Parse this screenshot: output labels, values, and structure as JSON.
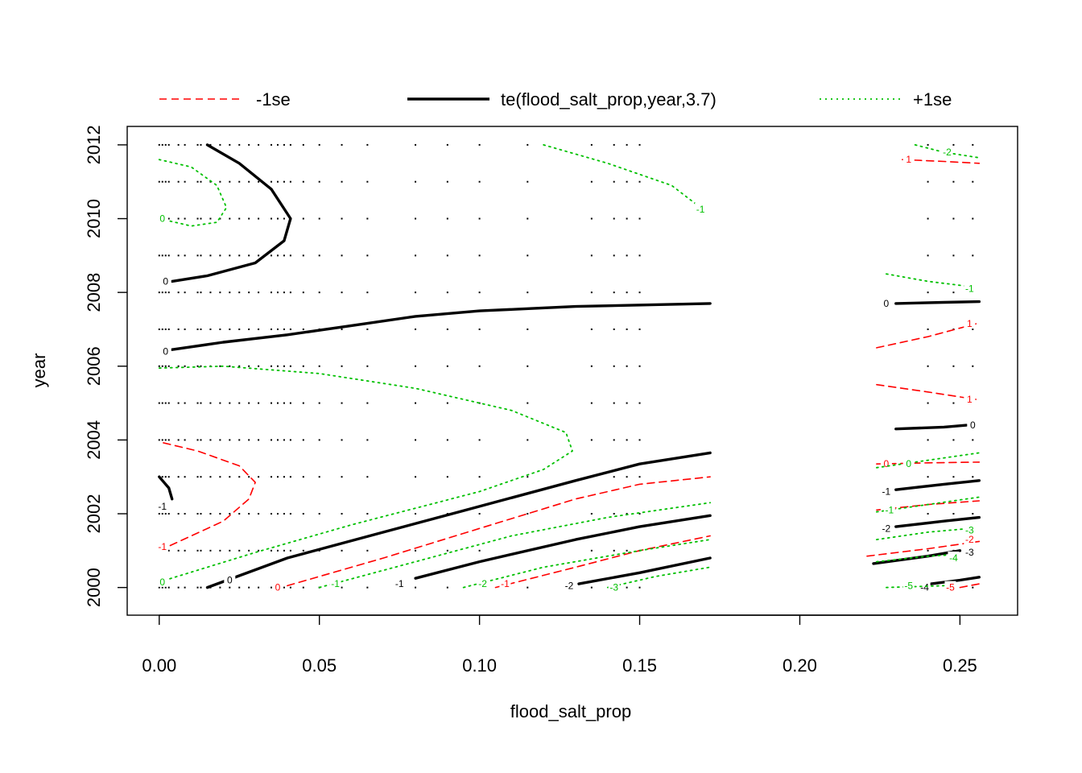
{
  "chart_data": {
    "type": "contour",
    "xlabel": "flood_salt_prop",
    "ylabel": "year",
    "xlim": [
      -0.01,
      0.268
    ],
    "ylim": [
      1999.25,
      2012.5
    ],
    "x_ticks": [
      0.0,
      0.05,
      0.1,
      0.15,
      0.2,
      0.25
    ],
    "x_tick_labels": [
      "0.00",
      "0.05",
      "0.10",
      "0.15",
      "0.20",
      "0.25"
    ],
    "y_ticks": [
      2000,
      2002,
      2004,
      2006,
      2008,
      2010,
      2012
    ],
    "y_tick_labels": [
      "2000",
      "2002",
      "2004",
      "2006",
      "2008",
      "2010",
      "2012"
    ],
    "legend": {
      "position": "top",
      "entries": [
        {
          "label": "-1se",
          "color": "#ff0000",
          "style": "dashed"
        },
        {
          "label": "te(flood_salt_prop,year,3.7)",
          "color": "#000000",
          "style": "solid"
        },
        {
          "label": "+1se",
          "color": "#00c000",
          "style": "dotted"
        }
      ]
    },
    "colors": {
      "fit": "#000000",
      "minus_se": "#ff0000",
      "plus_se": "#00c000",
      "points": "#000000"
    },
    "series": [
      {
        "name": "te(flood_salt_prop,year,3.7)",
        "contours": [
          {
            "level": "0",
            "points": [
              [
                0.004,
                2008.3
              ],
              [
                0.015,
                2008.45
              ],
              [
                0.03,
                2008.8
              ],
              [
                0.039,
                2009.4
              ],
              [
                0.041,
                2010.0
              ],
              [
                0.035,
                2010.8
              ],
              [
                0.025,
                2011.5
              ],
              [
                0.015,
                2012.0
              ]
            ],
            "label_at": [
              0.002,
              2008.3
            ]
          },
          {
            "level": "0",
            "points": [
              [
                0.004,
                2006.45
              ],
              [
                0.02,
                2006.65
              ],
              [
                0.04,
                2006.85
              ],
              [
                0.06,
                2007.1
              ],
              [
                0.08,
                2007.35
              ],
              [
                0.1,
                2007.5
              ],
              [
                0.13,
                2007.62
              ],
              [
                0.172,
                2007.7
              ]
            ],
            "label_at": [
              0.002,
              2006.4
            ]
          },
          {
            "level": "0",
            "points": [
              [
                0.015,
                2000.0
              ],
              [
                0.04,
                2000.8
              ],
              [
                0.07,
                2001.5
              ],
              [
                0.1,
                2002.2
              ],
              [
                0.13,
                2002.9
              ],
              [
                0.15,
                2003.35
              ],
              [
                0.172,
                2003.65
              ]
            ],
            "label_at": [
              0.022,
              2000.2
            ]
          },
          {
            "level": "-1",
            "points": [
              [
                0.0,
                2003.0
              ],
              [
                0.003,
                2002.7
              ],
              [
                0.004,
                2002.4
              ]
            ],
            "label_at": [
              0.001,
              2002.2
            ]
          },
          {
            "level": "-1",
            "points": [
              [
                0.08,
                2000.25
              ],
              [
                0.1,
                2000.7
              ],
              [
                0.13,
                2001.3
              ],
              [
                0.15,
                2001.65
              ],
              [
                0.172,
                2001.95
              ]
            ],
            "label_at": [
              0.075,
              2000.1
            ]
          },
          {
            "level": "-2",
            "points": [
              [
                0.131,
                2000.1
              ],
              [
                0.15,
                2000.4
              ],
              [
                0.172,
                2000.8
              ]
            ],
            "label_at": [
              0.128,
              2000.05
            ]
          },
          {
            "level": "0",
            "points": [
              [
                0.23,
                2007.7
              ],
              [
                0.245,
                2007.73
              ],
              [
                0.256,
                2007.75
              ]
            ],
            "label_at": [
              0.227,
              2007.7
            ]
          },
          {
            "level": "0",
            "points": [
              [
                0.23,
                2004.3
              ],
              [
                0.245,
                2004.35
              ],
              [
                0.252,
                2004.4
              ]
            ],
            "label_at": [
              0.254,
              2004.4
            ]
          },
          {
            "level": "-1",
            "points": [
              [
                0.23,
                2002.65
              ],
              [
                0.245,
                2002.8
              ],
              [
                0.256,
                2002.9
              ]
            ],
            "label_at": [
              0.227,
              2002.6
            ]
          },
          {
            "level": "-2",
            "points": [
              [
                0.23,
                2001.65
              ],
              [
                0.245,
                2001.8
              ],
              [
                0.256,
                2001.9
              ]
            ],
            "label_at": [
              0.227,
              2001.6
            ]
          },
          {
            "level": "-3",
            "points": [
              [
                0.223,
                2000.65
              ],
              [
                0.24,
                2000.85
              ],
              [
                0.25,
                2001.0
              ]
            ],
            "label_at": [
              0.253,
              2000.95
            ]
          },
          {
            "level": "-4",
            "points": [
              [
                0.241,
                2000.1
              ],
              [
                0.25,
                2000.2
              ],
              [
                0.256,
                2000.28
              ]
            ],
            "label_at": [
              0.239,
              2000.0
            ]
          }
        ]
      },
      {
        "name": "-1se",
        "contours": [
          {
            "level": "-1",
            "points": [
              [
                0.0,
                2001.0
              ],
              [
                0.01,
                2001.4
              ],
              [
                0.02,
                2001.8
              ],
              [
                0.028,
                2002.4
              ],
              [
                0.03,
                2002.85
              ],
              [
                0.025,
                2003.3
              ],
              [
                0.012,
                2003.7
              ],
              [
                0.0,
                2003.95
              ]
            ],
            "label_at": [
              0.001,
              2001.1
            ]
          },
          {
            "level": "0",
            "points": [
              [
                0.04,
                2000.05
              ],
              [
                0.07,
                2000.8
              ],
              [
                0.1,
                2001.6
              ],
              [
                0.13,
                2002.4
              ],
              [
                0.15,
                2002.8
              ],
              [
                0.172,
                2003.0
              ]
            ],
            "label_at": [
              0.037,
              2000.0
            ]
          },
          {
            "level": "-1",
            "points": [
              [
                0.105,
                2000.0
              ],
              [
                0.13,
                2000.55
              ],
              [
                0.15,
                2001.0
              ],
              [
                0.172,
                2001.4
              ]
            ],
            "label_at": [
              0.108,
              2000.1
            ]
          },
          {
            "level": "1",
            "points": [
              [
                0.232,
                2011.6
              ],
              [
                0.245,
                2011.55
              ],
              [
                0.256,
                2011.5
              ]
            ],
            "label_at": [
              0.234,
              2011.6
            ]
          },
          {
            "level": "1",
            "points": [
              [
                0.224,
                2006.5
              ],
              [
                0.24,
                2006.8
              ],
              [
                0.255,
                2007.15
              ]
            ],
            "label_at": [
              0.253,
              2007.15
            ]
          },
          {
            "level": "1",
            "points": [
              [
                0.224,
                2005.5
              ],
              [
                0.24,
                2005.3
              ],
              [
                0.255,
                2005.1
              ]
            ],
            "label_at": [
              0.253,
              2005.1
            ]
          },
          {
            "level": "0",
            "points": [
              [
                0.224,
                2003.35
              ],
              [
                0.24,
                2003.38
              ],
              [
                0.256,
                2003.4
              ]
            ],
            "label_at": [
              0.227,
              2003.35
            ]
          },
          {
            "level": "-1",
            "points": [
              [
                0.224,
                2002.1
              ],
              [
                0.24,
                2002.25
              ],
              [
                0.256,
                2002.35
              ]
            ],
            "label_at": [
              0.227,
              2002.1
            ]
          },
          {
            "level": "-2",
            "points": [
              [
                0.221,
                2000.85
              ],
              [
                0.24,
                2001.05
              ],
              [
                0.256,
                2001.25
              ]
            ],
            "label_at": [
              0.253,
              2001.3
            ]
          },
          {
            "level": "-5",
            "points": [
              [
                0.25,
                2000.0
              ],
              [
                0.256,
                2000.1
              ]
            ],
            "label_at": [
              0.247,
              2000.0
            ]
          }
        ]
      },
      {
        "name": "+1se",
        "contours": [
          {
            "level": "0",
            "points": [
              [
                0.0,
                2010.0
              ],
              [
                0.01,
                2009.8
              ],
              [
                0.018,
                2009.9
              ],
              [
                0.021,
                2010.3
              ],
              [
                0.018,
                2010.9
              ],
              [
                0.01,
                2011.4
              ],
              [
                0.0,
                2011.6
              ]
            ],
            "label_at": [
              0.001,
              2010.0
            ]
          },
          {
            "level": "0",
            "points": [
              [
                0.0,
                2005.95
              ],
              [
                0.02,
                2006.0
              ],
              [
                0.05,
                2005.8
              ],
              [
                0.08,
                2005.4
              ],
              [
                0.11,
                2004.8
              ],
              [
                0.127,
                2004.2
              ],
              [
                0.129,
                2003.7
              ],
              [
                0.12,
                2003.2
              ],
              [
                0.1,
                2002.6
              ],
              [
                0.06,
                2001.7
              ],
              [
                0.03,
                2000.95
              ],
              [
                0.0,
                2000.15
              ]
            ],
            "label_at": [
              0.001,
              2000.15
            ]
          },
          {
            "level": "-1",
            "points": [
              [
                0.05,
                2000.0
              ],
              [
                0.08,
                2000.7
              ],
              [
                0.11,
                2001.4
              ],
              [
                0.14,
                2001.9
              ],
              [
                0.172,
                2002.3
              ]
            ],
            "label_at": [
              0.055,
              2000.1
            ]
          },
          {
            "level": "-2",
            "points": [
              [
                0.095,
                2000.0
              ],
              [
                0.12,
                2000.55
              ],
              [
                0.15,
                2001.0
              ],
              [
                0.172,
                2001.3
              ]
            ],
            "label_at": [
              0.101,
              2000.1
            ]
          },
          {
            "level": "-3",
            "points": [
              [
                0.14,
                2000.0
              ],
              [
                0.155,
                2000.3
              ],
              [
                0.172,
                2000.55
              ]
            ],
            "label_at": [
              0.142,
              2000.0
            ]
          },
          {
            "level": "-1",
            "points": [
              [
                0.12,
                2012.0
              ],
              [
                0.14,
                2011.5
              ],
              [
                0.16,
                2010.9
              ],
              [
                0.169,
                2010.3
              ]
            ],
            "label_at": [
              0.169,
              2010.25
            ]
          },
          {
            "level": "-2",
            "points": [
              [
                0.236,
                2012.0
              ],
              [
                0.245,
                2011.8
              ],
              [
                0.256,
                2011.65
              ]
            ],
            "label_at": [
              0.246,
              2011.8
            ]
          },
          {
            "level": "-1",
            "points": [
              [
                0.227,
                2008.5
              ],
              [
                0.24,
                2008.3
              ],
              [
                0.254,
                2008.15
              ]
            ],
            "label_at": [
              0.253,
              2008.1
            ]
          },
          {
            "level": "0",
            "points": [
              [
                0.224,
                2003.25
              ],
              [
                0.24,
                2003.45
              ],
              [
                0.256,
                2003.65
              ]
            ],
            "label_at": [
              0.234,
              2003.35
            ]
          },
          {
            "level": "-1",
            "points": [
              [
                0.224,
                2002.05
              ],
              [
                0.24,
                2002.25
              ],
              [
                0.256,
                2002.45
              ]
            ],
            "label_at": [
              0.228,
              2002.1
            ]
          },
          {
            "level": "-3",
            "points": [
              [
                0.224,
                2001.3
              ],
              [
                0.24,
                2001.5
              ],
              [
                0.253,
                2001.6
              ]
            ],
            "label_at": [
              0.253,
              2001.55
            ]
          },
          {
            "level": "-4",
            "points": [
              [
                0.224,
                2000.7
              ],
              [
                0.24,
                2000.85
              ],
              [
                0.25,
                2000.9
              ]
            ],
            "label_at": [
              0.248,
              2000.8
            ]
          },
          {
            "level": "-5",
            "points": [
              [
                0.227,
                2000.0
              ],
              [
                0.245,
                2000.05
              ]
            ],
            "label_at": [
              0.234,
              2000.05
            ]
          }
        ]
      }
    ],
    "data_points": {
      "x": [
        0.0,
        0.001,
        0.002,
        0.003,
        0.006,
        0.008,
        0.012,
        0.013,
        0.016,
        0.019,
        0.022,
        0.025,
        0.028,
        0.031,
        0.035,
        0.037,
        0.039,
        0.041,
        0.045,
        0.05,
        0.057,
        0.065,
        0.08,
        0.09,
        0.1,
        0.115,
        0.135,
        0.142,
        0.146,
        0.15,
        0.24,
        0.248,
        0.254
      ],
      "y": [
        2000,
        2001,
        2002,
        2003,
        2004,
        2005,
        2006,
        2007,
        2008,
        2009,
        2010,
        2011,
        2012
      ]
    }
  }
}
